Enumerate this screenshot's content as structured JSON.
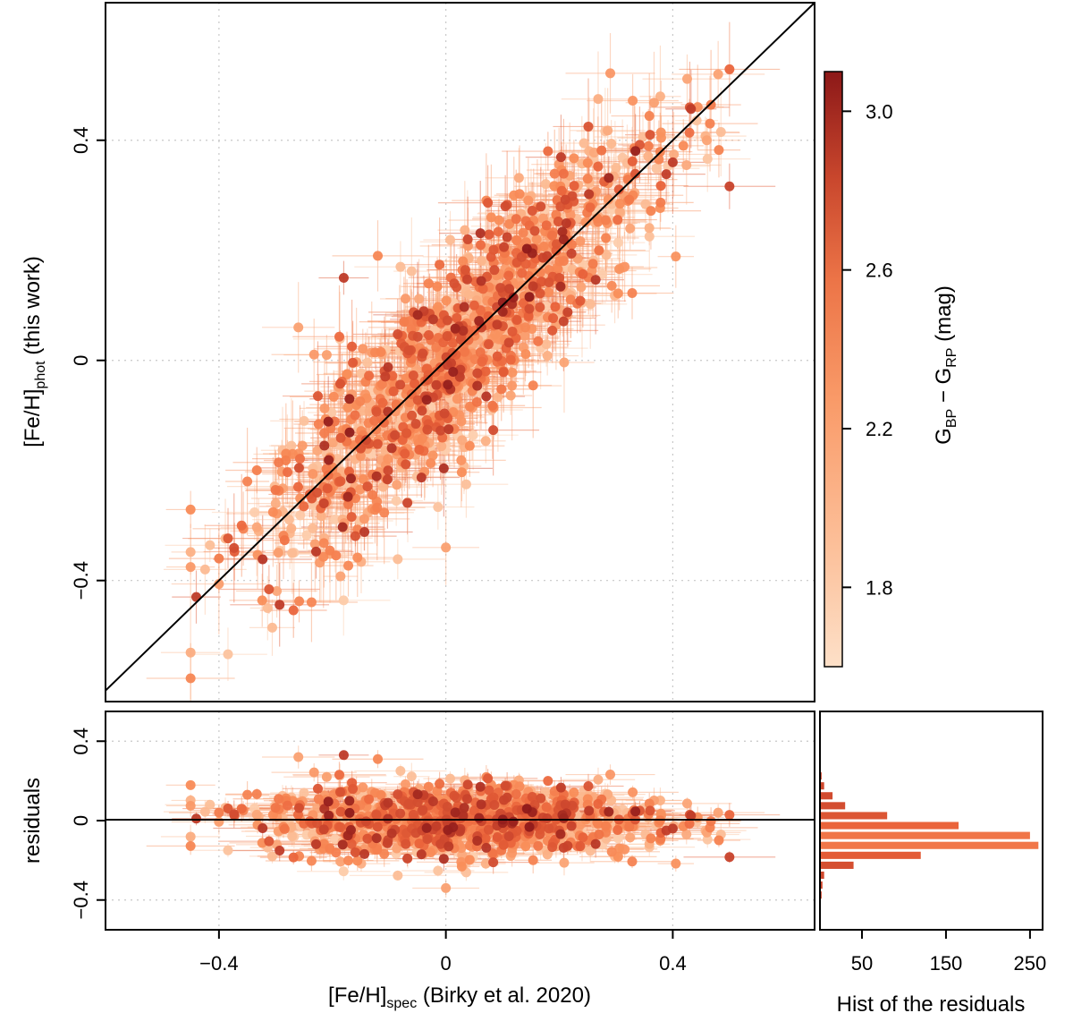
{
  "chart_data": [
    {
      "name": "main-scatter",
      "type": "scatter",
      "xlabel": "[Fe/H]",
      "xlabel_sub": "spec",
      "xlabel_suffix": " (Birky et al. 2020)",
      "ylabel": "[Fe/H]",
      "ylabel_sub": "phot",
      "ylabel_suffix": " (this work)",
      "xlim": [
        -0.6,
        0.65
      ],
      "ylim": [
        -0.62,
        0.65
      ],
      "xticks": [
        -0.4,
        0,
        0.4
      ],
      "xtick_labels": [
        "−0.4",
        "0",
        "0.4"
      ],
      "yticks": [
        -0.4,
        0,
        0.4
      ],
      "ytick_labels": [
        "−0.4",
        "0",
        "0.4"
      ],
      "reference_line": "y = x",
      "grid": true,
      "approx_points": 1200,
      "color_by": "G_BP - G_RP (mag)",
      "sample_points": [
        [
          -0.44,
          -0.43
        ],
        [
          -0.4,
          -0.36
        ],
        [
          -0.36,
          -0.3
        ],
        [
          -0.35,
          -0.22
        ],
        [
          -0.33,
          -0.31
        ],
        [
          -0.3,
          -0.26
        ],
        [
          -0.27,
          -0.17
        ],
        [
          -0.26,
          0.06
        ],
        [
          -0.25,
          -0.11
        ],
        [
          -0.22,
          -0.35
        ],
        [
          -0.21,
          0.01
        ],
        [
          -0.2,
          -0.2
        ],
        [
          -0.18,
          0.15
        ],
        [
          -0.17,
          -0.07
        ],
        [
          -0.15,
          -0.16
        ],
        [
          -0.13,
          -0.27
        ],
        [
          -0.12,
          0.19
        ],
        [
          -0.1,
          -0.04
        ],
        [
          -0.08,
          0.17
        ],
        [
          -0.06,
          -0.1
        ],
        [
          -0.05,
          0.07
        ],
        [
          -0.03,
          -0.15
        ],
        [
          0.0,
          -0.34
        ],
        [
          0.0,
          0.05
        ],
        [
          0.02,
          -0.07
        ],
        [
          0.03,
          0.18
        ],
        [
          0.05,
          0.1
        ],
        [
          0.07,
          -0.02
        ],
        [
          0.08,
          0.26
        ],
        [
          0.1,
          0.12
        ],
        [
          0.12,
          0.3
        ],
        [
          0.14,
          0.06
        ],
        [
          0.16,
          0.22
        ],
        [
          0.18,
          0.38
        ],
        [
          0.2,
          0.15
        ],
        [
          0.22,
          0.25
        ],
        [
          0.25,
          0.33
        ],
        [
          0.27,
          0.2
        ],
        [
          0.3,
          0.35
        ],
        [
          0.33,
          0.3
        ],
        [
          0.36,
          0.41
        ],
        [
          0.4,
          0.36
        ],
        [
          0.43,
          0.46
        ],
        [
          0.46,
          0.4
        ],
        [
          0.48,
          0.52
        ]
      ]
    },
    {
      "name": "residuals",
      "type": "scatter",
      "ylabel": "residuals",
      "xlim": [
        -0.6,
        0.65
      ],
      "ylim": [
        -0.55,
        0.55
      ],
      "yticks": [
        -0.4,
        0,
        0.4
      ],
      "ytick_labels": [
        "−0.4",
        "0",
        "0.4"
      ],
      "reference_line": "y = 0",
      "grid": true
    },
    {
      "name": "residual-histogram",
      "type": "bar",
      "orientation": "horizontal",
      "xlabel": "Hist of the residuals",
      "xticks": [
        50,
        150,
        250
      ],
      "xtick_labels": [
        "50",
        "150",
        "250"
      ],
      "xlim": [
        0,
        265
      ],
      "bin_edges": [
        -0.45,
        -0.4,
        -0.35,
        -0.3,
        -0.25,
        -0.2,
        -0.15,
        -0.1,
        -0.05,
        0.0,
        0.05,
        0.1,
        0.15,
        0.2,
        0.25,
        0.3,
        0.35
      ],
      "counts": [
        1,
        2,
        3,
        5,
        40,
        120,
        260,
        250,
        165,
        80,
        30,
        15,
        5,
        2,
        0,
        0
      ]
    }
  ],
  "colorbar": {
    "label": "G",
    "label_sub1": "BP",
    "label_mid": " − G",
    "label_sub2": "RP",
    "label_suffix": " (mag)",
    "range": [
      1.6,
      3.1
    ],
    "ticks": [
      1.8,
      2.2,
      2.6,
      3.0
    ],
    "tick_labels": [
      "1.8",
      "2.2",
      "2.6",
      "3.0"
    ],
    "colors": [
      "#fdd9bd",
      "#fcb68c",
      "#f98c58",
      "#e9623a",
      "#c5402a",
      "#8e1a1a"
    ]
  }
}
